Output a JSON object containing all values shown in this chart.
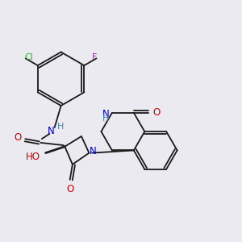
{
  "bg": "#eaeaf0",
  "bond_color": "#1a1a1a",
  "lw": 1.3,
  "colors": {
    "Cl": "#22bb22",
    "F": "#cc00cc",
    "N": "#0000cc",
    "O": "#cc0000",
    "H": "#4488aa",
    "C": "#1a1a1a"
  }
}
